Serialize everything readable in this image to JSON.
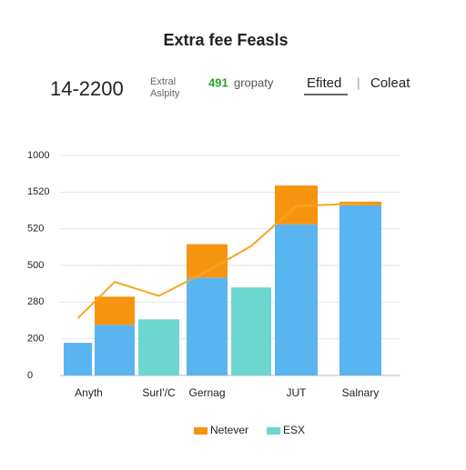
{
  "header": {
    "big_number": "14-2200",
    "small_lines": [
      "Extral",
      "Aslpity"
    ],
    "green_value": "491",
    "green_label": "gropaty",
    "tab_active": "Efited",
    "separator": "|",
    "tab_other": "Coleat"
  },
  "chart_data": {
    "type": "bar",
    "title": "Extra fee Feasls",
    "categories": [
      "Anyth",
      null,
      "SurI'/C",
      "Gernag",
      null,
      "JUT",
      "Salnary"
    ],
    "series": [
      {
        "color": "#5ab4f0",
        "values": [
          89,
          138,
          null,
          267,
          null,
          412,
          464
        ]
      },
      {
        "name": "ESX",
        "color": "#6dd6cf",
        "values": [
          null,
          null,
          153,
          null,
          240,
          null,
          null
        ]
      },
      {
        "name": "Netever",
        "color": "#f7940f",
        "values": [
          null,
          77,
          null,
          91,
          null,
          106,
          10
        ]
      },
      {
        "type": "line",
        "color": "#f5a623",
        "values": [
          156,
          255,
          217,
          284,
          353,
          462,
          469
        ]
      }
    ],
    "ylim": [
      0,
      600
    ],
    "yticks": [
      0,
      {
        "value": 100,
        "label": "200"
      },
      {
        "value": 200,
        "label": "280"
      },
      {
        "value": 300,
        "label": "500"
      },
      {
        "value": 400,
        "label": "520"
      },
      {
        "value": 500,
        "label": "1520"
      },
      {
        "value": 600,
        "label": "1000"
      }
    ],
    "grid": true
  }
}
